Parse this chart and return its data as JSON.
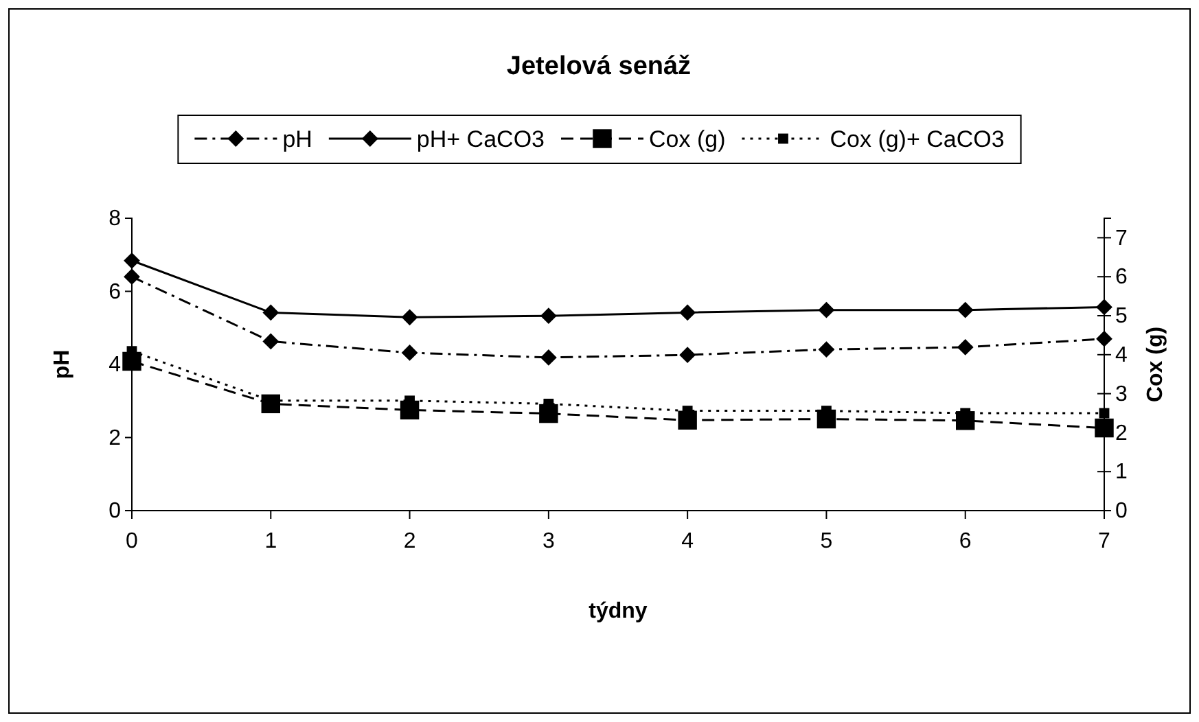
{
  "chart_data": {
    "type": "line",
    "title": "Jetelová senáž",
    "xlabel": "týdny",
    "ylabel": "pH",
    "y2label": "Cox (g)",
    "x": [
      0,
      1,
      2,
      3,
      4,
      5,
      6,
      7
    ],
    "xlim": [
      0,
      7
    ],
    "xticks": [
      0,
      1,
      2,
      3,
      4,
      5,
      6,
      7
    ],
    "ylim": [
      0,
      8
    ],
    "yticks": [
      0,
      2,
      4,
      6,
      8
    ],
    "y2lim": [
      0,
      7.5
    ],
    "y2ticks": [
      0,
      1,
      2,
      3,
      4,
      5,
      6,
      7
    ],
    "grid": false,
    "legend": "top",
    "series": [
      {
        "name": "pH",
        "color": "#000000",
        "marker": "diamond",
        "line_style": "dashdot",
        "values": [
          6.4,
          4.63,
          4.32,
          4.19,
          4.26,
          4.41,
          4.47,
          4.7
        ]
      },
      {
        "name": "pH+ CaCO3",
        "color": "#000000",
        "marker": "diamond",
        "line_style": "solid",
        "values": [
          6.84,
          5.42,
          5.29,
          5.33,
          5.42,
          5.49,
          5.49,
          5.57
        ]
      },
      {
        "name": "Cox (g)",
        "color": "#000000",
        "marker": "square",
        "line_style": "dashed",
        "axis": "y2",
        "values": [
          3.83,
          2.74,
          2.58,
          2.49,
          2.32,
          2.35,
          2.31,
          2.12
        ]
      },
      {
        "name": "Cox (g)+ CaCO3",
        "color": "#000000",
        "marker": "square",
        "line_style": "dotted",
        "axis": "y2",
        "values": [
          4.09,
          2.82,
          2.82,
          2.74,
          2.56,
          2.56,
          2.5,
          2.5
        ]
      }
    ]
  }
}
